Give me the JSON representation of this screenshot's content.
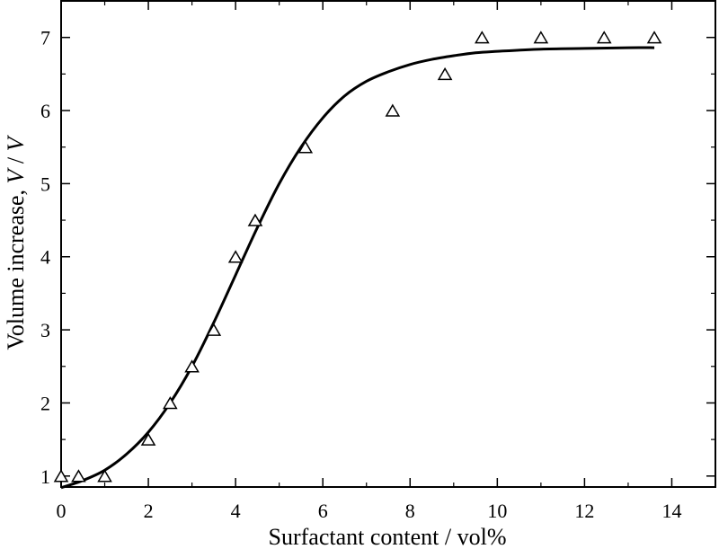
{
  "chart_data": {
    "type": "scatter",
    "xlabel": "Surfactant content / vol%",
    "ylabel": {
      "main": "Volume increase, ",
      "v1": "V",
      "sep": " / ",
      "v2": "V"
    },
    "xlim": [
      0,
      15
    ],
    "ylim": [
      0.85,
      7.5
    ],
    "xticks": [
      0,
      2,
      4,
      6,
      8,
      10,
      12,
      14
    ],
    "yticks": [
      1,
      2,
      3,
      4,
      5,
      6,
      7
    ],
    "grid": false,
    "series": [
      {
        "kind": "points",
        "marker": "open-triangle",
        "color": "#000000",
        "x": [
          0,
          0.4,
          1.0,
          2.0,
          2.5,
          3.0,
          3.5,
          4.0,
          4.45,
          5.6,
          7.6,
          8.8,
          9.65,
          11.0,
          12.45,
          13.6
        ],
        "y": [
          1.0,
          1.0,
          1.0,
          1.5,
          2.0,
          2.5,
          3.0,
          4.0,
          4.5,
          5.5,
          6.0,
          6.5,
          7.0,
          7.0,
          7.0,
          7.0
        ]
      },
      {
        "kind": "fit-curve",
        "color": "#000000",
        "x": [
          0,
          0.5,
          1.0,
          1.5,
          2.0,
          2.5,
          3.0,
          3.5,
          4.0,
          4.5,
          5.0,
          5.5,
          6.0,
          6.5,
          7.0,
          7.5,
          8.0,
          8.5,
          9.0,
          9.5,
          10.0,
          11.0,
          12.0,
          13.0,
          13.6
        ],
        "y": [
          0.84,
          0.94,
          1.08,
          1.3,
          1.6,
          2.0,
          2.5,
          3.1,
          3.75,
          4.4,
          5.0,
          5.5,
          5.9,
          6.2,
          6.4,
          6.53,
          6.63,
          6.7,
          6.75,
          6.79,
          6.81,
          6.84,
          6.85,
          6.86,
          6.86
        ]
      }
    ]
  }
}
